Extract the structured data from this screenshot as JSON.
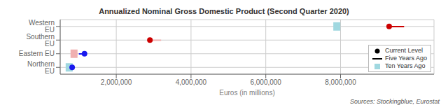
{
  "chart_data": {
    "type": "dot",
    "orientation": "horizontal",
    "title": "Annualized Nominal Gross Domestic Product (Second Quarter 2020)",
    "x_label": "Euros (in millions)",
    "annotations": [
      "Sources: Stockingblue, Eurostat"
    ],
    "categories": [
      "Western EU",
      "Southern EU",
      "Eastern EU",
      "Northern EU"
    ],
    "series": [
      {
        "name": "Current Level",
        "type": "scatter",
        "marker": "circle",
        "color": "#000000",
        "colors": [
          "#cc0000",
          "#cc0000",
          "#1a1aee",
          "#1a1aee"
        ],
        "values": [
          9300000,
          2900000,
          1150000,
          820000
        ]
      },
      {
        "name": "Five Years Ago",
        "type": "line",
        "color": "#000000",
        "colors": [
          "#cc0000",
          "#f0b0b0",
          "#1a1aee",
          "#1a1aee"
        ],
        "values": [
          9700000,
          3200000,
          1000000,
          null
        ]
      },
      {
        "name": "Ten Years Ago",
        "type": "scatter",
        "marker": "square",
        "color": "#a0d8e0",
        "colors": [
          "#a0d8e0",
          "#f0b0b0",
          "#a0d8e0",
          "#a0d8e0"
        ],
        "values": [
          7900000,
          null,
          870000,
          740000
        ]
      }
    ],
    "xlim": [
      500000,
      10500000
    ],
    "xticks": [
      {
        "value": 2000000,
        "label": "2,000,000"
      },
      {
        "value": 4000000,
        "label": "4,000,000"
      },
      {
        "value": 6000000,
        "label": "6,000,000"
      },
      {
        "value": 8000000,
        "label": "8,000,000"
      }
    ],
    "grid": true,
    "legend": "lower right"
  }
}
